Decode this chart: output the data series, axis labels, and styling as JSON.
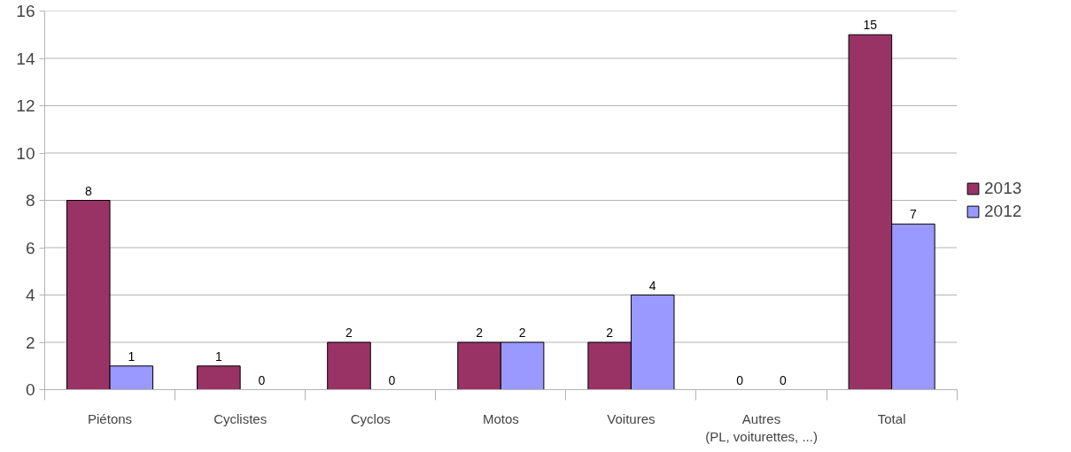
{
  "chart_data": {
    "type": "bar",
    "categories": [
      "Piétons",
      "Cyclistes",
      "Cyclos",
      "Motos",
      "Voitures",
      "Autres\n(PL, voiturettes, ...)",
      "Total"
    ],
    "series": [
      {
        "name": "2013",
        "color": "#993366",
        "values": [
          8,
          1,
          2,
          2,
          2,
          0,
          15
        ]
      },
      {
        "name": "2012",
        "color": "#9999ff",
        "values": [
          1,
          0,
          0,
          2,
          4,
          0,
          7
        ]
      }
    ],
    "ylim": [
      0,
      16
    ],
    "yticks": [
      0,
      2,
      4,
      6,
      8,
      10,
      12,
      14,
      16
    ],
    "grid": "y",
    "legend": "right",
    "data_labels": true
  }
}
